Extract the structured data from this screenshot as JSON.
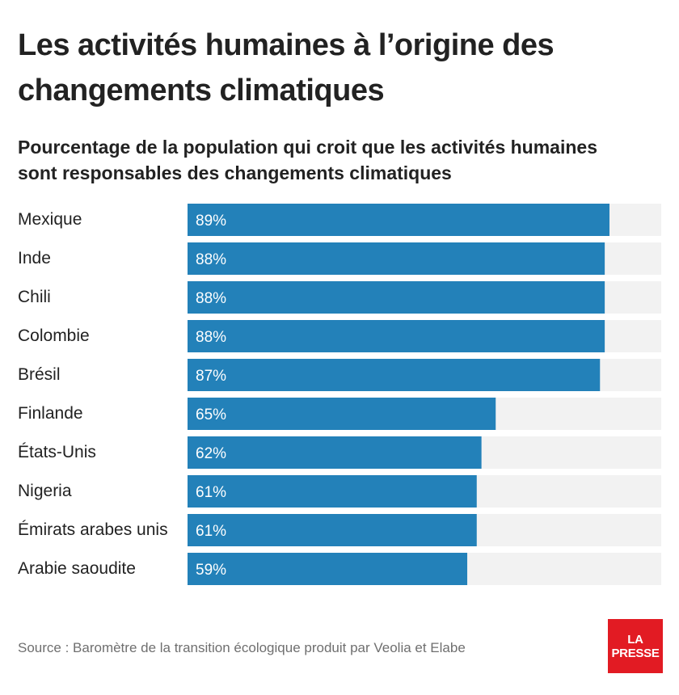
{
  "header": {
    "title_line1": "Les activités humaines à l’origine des",
    "title_line2": "changements climatiques",
    "subtitle_line1": "Pourcentage de la population qui croit que les activités humaines",
    "subtitle_line2": "sont responsables des changements climatiques"
  },
  "chart_data": {
    "type": "bar",
    "orientation": "horizontal",
    "title": "Les activités humaines à l’origine des changements climatiques",
    "subtitle": "Pourcentage de la population qui croit que les activités humaines sont responsables des changements climatiques",
    "categories": [
      "Mexique",
      "Inde",
      "Chili",
      "Colombie",
      "Brésil",
      "Finlande",
      "États-Unis",
      "Nigeria",
      "Émirats arabes unis",
      "Arabie saoudite"
    ],
    "values": [
      89,
      88,
      88,
      88,
      87,
      65,
      62,
      61,
      61,
      59
    ],
    "value_labels": [
      "89%",
      "88%",
      "88%",
      "88%",
      "87%",
      "65%",
      "62%",
      "61%",
      "61%",
      "59%"
    ],
    "xlim": [
      0,
      100
    ],
    "bar_color": "#2381b9",
    "track_color": "#f2f2f2",
    "grid": false,
    "legend": "none"
  },
  "footer": {
    "source": "Source : Baromètre de la transition écologique produit par Veolia et Elabe",
    "logo_line1": "LA",
    "logo_line2": "PRESSE",
    "logo_color": "#e21b23"
  }
}
